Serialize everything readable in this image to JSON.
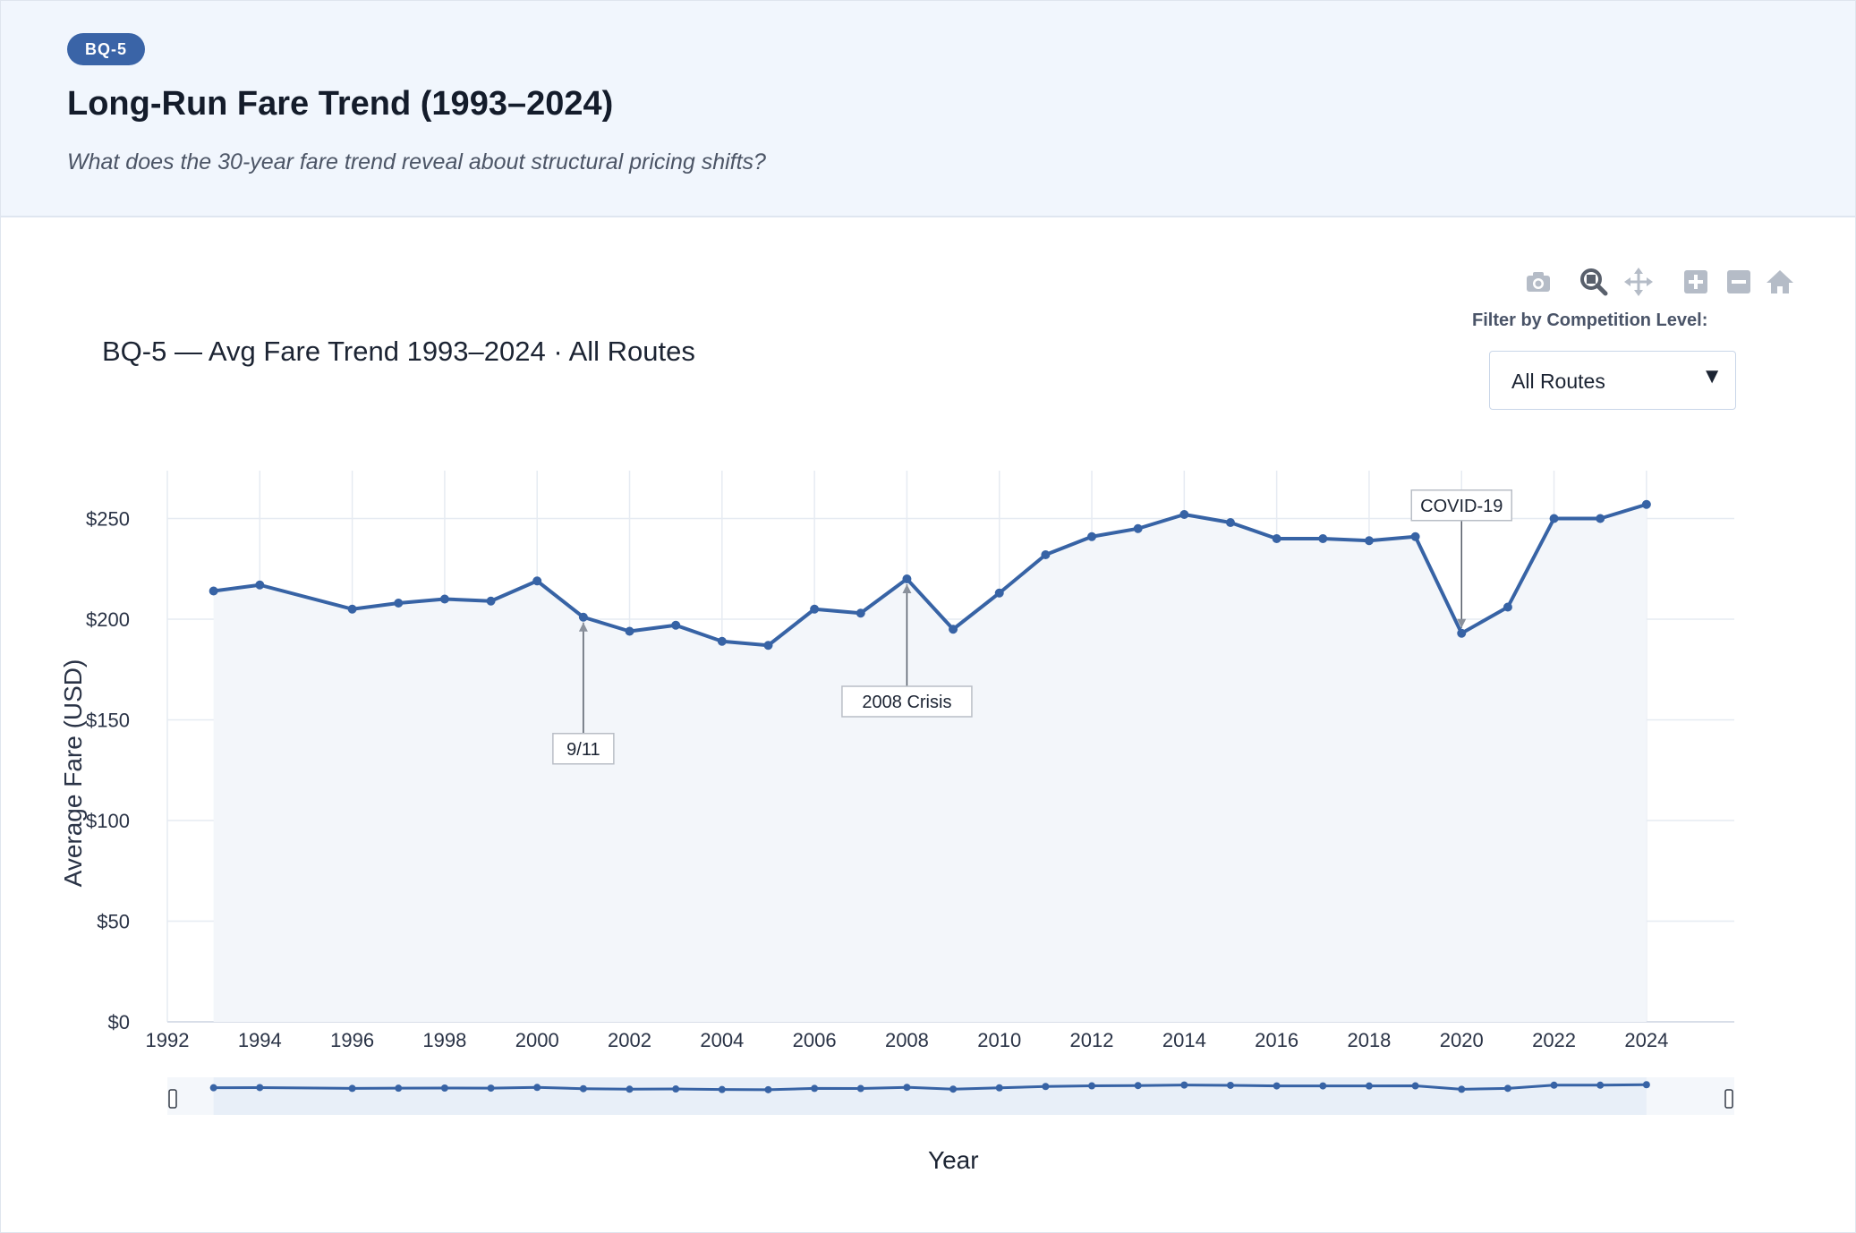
{
  "header": {
    "badge": "BQ-5",
    "title": "Long-Run Fare Trend (1993–2024)",
    "question": "What does the 30-year fare trend reveal about structural pricing shifts?"
  },
  "modebar": {
    "icons": [
      "camera-icon",
      "zoom-icon",
      "pan-icon",
      "zoom-in-icon",
      "zoom-out-icon",
      "home-icon"
    ]
  },
  "filter": {
    "label": "Filter by Competition Level:",
    "selected": "All Routes"
  },
  "colors": {
    "line": "#3763a5",
    "fill": "#f3f6fa",
    "grid": "#e6ebf2",
    "header_bg": "#f1f6fd",
    "badge_bg": "#3a64a7"
  },
  "chart_data": {
    "type": "line",
    "title": "BQ-5 — Avg Fare Trend 1993–2024 · All Routes",
    "xlabel": "Year",
    "ylabel": "Average Fare (USD)",
    "xlim": [
      1992,
      2025.9
    ],
    "ylim": [
      0,
      270
    ],
    "x_ticks": [
      1992,
      1994,
      1996,
      1998,
      2000,
      2002,
      2004,
      2006,
      2008,
      2010,
      2012,
      2014,
      2016,
      2018,
      2020,
      2022,
      2024
    ],
    "y_ticks": [
      0,
      50,
      100,
      150,
      200,
      250
    ],
    "y_tick_labels": [
      "$0",
      "$50",
      "$100",
      "$150",
      "$200",
      "$250"
    ],
    "grid": true,
    "area_fill": true,
    "range_slider": true,
    "series": [
      {
        "x": [
          1993,
          1994,
          1996,
          1997,
          1998,
          1999,
          2000,
          2001,
          2002,
          2003,
          2004,
          2005,
          2006,
          2007,
          2008,
          2009,
          2010,
          2011,
          2012,
          2013,
          2014,
          2015,
          2016,
          2017,
          2018,
          2019,
          2020,
          2021,
          2022,
          2023,
          2024
        ],
        "values": [
          214,
          217,
          205,
          208,
          210,
          209,
          219,
          201,
          194,
          197,
          189,
          187,
          205,
          203,
          220,
          195,
          213,
          232,
          241,
          245,
          252,
          248,
          240,
          240,
          239,
          241,
          193,
          206,
          250,
          250,
          257
        ]
      }
    ],
    "annotations": [
      {
        "text": "9/11",
        "x": 2001,
        "y": 201,
        "position": "below"
      },
      {
        "text": "2008 Crisis",
        "x": 2008,
        "y": 220,
        "position": "below"
      },
      {
        "text": "COVID-19",
        "x": 2020,
        "y": 193,
        "position": "above"
      }
    ]
  }
}
